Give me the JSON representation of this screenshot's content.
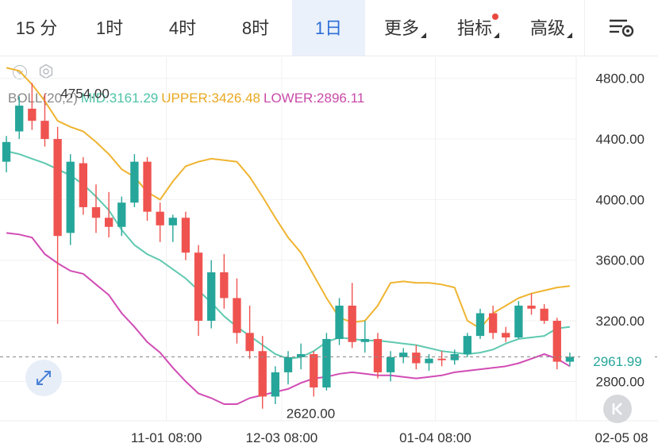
{
  "tabs": [
    {
      "label": "15 分",
      "active": false
    },
    {
      "label": "1时",
      "active": false
    },
    {
      "label": "4时",
      "active": false
    },
    {
      "label": "8时",
      "active": false
    },
    {
      "label": "1日",
      "active": true
    },
    {
      "label": "更多",
      "active": false,
      "dropdown": true
    },
    {
      "label": "指标",
      "active": false,
      "dropdown": true,
      "badge": true
    },
    {
      "label": "高级",
      "active": false,
      "dropdown": true
    }
  ],
  "toolbar_icons": [
    "collapse-icon",
    "settings-icon",
    "chart-settings-icon",
    "expand-icon",
    "scroll-to-latest-icon"
  ],
  "indicator": {
    "name": "BOLL(20,2)",
    "mid": "MID:3161.29",
    "upper": "UPPER:3426.48",
    "lower": "LOWER:2896.11"
  },
  "colors": {
    "up": "#26a69a",
    "down": "#ef5350",
    "mid": "#5fc9b0",
    "upper": "#efb431",
    "lower": "#d14cb4",
    "active_tab": "#2f6fd6",
    "badge": "#e8493e"
  },
  "price_labels": {
    "high": "4754.00",
    "low": "2620.00",
    "current": "2961.99"
  },
  "chart_data": {
    "type": "candlestick",
    "y_ticks": [
      "4800.00",
      "4400.00",
      "4000.00",
      "3600.00",
      "3200.00",
      "2800.00"
    ],
    "y_tick_values": [
      4800,
      4400,
      4000,
      3600,
      3200,
      2800
    ],
    "x_ticks": [
      "11-01 08:00",
      "12-03 08:00",
      "01-04 08:00",
      "02-05 08"
    ],
    "ylim": [
      2540,
      4940
    ],
    "current_price": 2961.99,
    "annotations": [
      {
        "label": "4754.00",
        "value": 4754
      },
      {
        "label": "2620.00",
        "value": 2620
      }
    ],
    "upper": [
      4870,
      4850,
      4760,
      4650,
      4520,
      4480,
      4450,
      4380,
      4300,
      4200,
      4150,
      4050,
      4000,
      4120,
      4220,
      4250,
      4270,
      4260,
      4250,
      4150,
      4020,
      3880,
      3750,
      3650,
      3500,
      3350,
      3220,
      3190,
      3200,
      3300,
      3450,
      3460,
      3450,
      3450,
      3440,
      3420,
      3200,
      3150,
      3250,
      3300,
      3350,
      3380,
      3400,
      3420,
      3430
    ],
    "mid": [
      4320,
      4300,
      4270,
      4240,
      4200,
      4160,
      4100,
      4020,
      3930,
      3800,
      3700,
      3640,
      3600,
      3540,
      3480,
      3400,
      3320,
      3230,
      3160,
      3100,
      3040,
      2980,
      2950,
      2960,
      3000,
      3060,
      3090,
      3080,
      3070,
      3070,
      3060,
      3050,
      3040,
      3020,
      3000,
      2990,
      2980,
      2990,
      3010,
      3050,
      3080,
      3090,
      3100,
      3150,
      3160
    ],
    "lower": [
      3780,
      3770,
      3750,
      3640,
      3580,
      3530,
      3510,
      3440,
      3370,
      3250,
      3160,
      3060,
      2990,
      2890,
      2800,
      2720,
      2690,
      2650,
      2650,
      2690,
      2710,
      2730,
      2750,
      2790,
      2820,
      2830,
      2850,
      2860,
      2850,
      2840,
      2840,
      2830,
      2820,
      2830,
      2840,
      2860,
      2870,
      2880,
      2890,
      2900,
      2920,
      2950,
      2980,
      2950,
      2900
    ],
    "candles": [
      {
        "o": 4250,
        "h": 4420,
        "l": 4180,
        "c": 4380
      },
      {
        "o": 4450,
        "h": 4680,
        "l": 4400,
        "c": 4620
      },
      {
        "o": 4600,
        "h": 4770,
        "l": 4460,
        "c": 4520
      },
      {
        "o": 4520,
        "h": 4700,
        "l": 4350,
        "c": 4400
      },
      {
        "o": 4400,
        "h": 4480,
        "l": 3180,
        "c": 3760
      },
      {
        "o": 3780,
        "h": 4300,
        "l": 3700,
        "c": 4250
      },
      {
        "o": 4240,
        "h": 4280,
        "l": 3900,
        "c": 3950
      },
      {
        "o": 3950,
        "h": 4100,
        "l": 3780,
        "c": 3880
      },
      {
        "o": 3880,
        "h": 4050,
        "l": 3750,
        "c": 3820
      },
      {
        "o": 3820,
        "h": 4020,
        "l": 3760,
        "c": 3980
      },
      {
        "o": 3980,
        "h": 4300,
        "l": 3950,
        "c": 4250
      },
      {
        "o": 4250,
        "h": 4280,
        "l": 3860,
        "c": 3920
      },
      {
        "o": 3920,
        "h": 3980,
        "l": 3720,
        "c": 3830
      },
      {
        "o": 3830,
        "h": 3900,
        "l": 3720,
        "c": 3880
      },
      {
        "o": 3880,
        "h": 3920,
        "l": 3600,
        "c": 3650
      },
      {
        "o": 3650,
        "h": 3700,
        "l": 3100,
        "c": 3200
      },
      {
        "o": 3200,
        "h": 3600,
        "l": 3150,
        "c": 3520
      },
      {
        "o": 3520,
        "h": 3640,
        "l": 3280,
        "c": 3350
      },
      {
        "o": 3350,
        "h": 3480,
        "l": 3050,
        "c": 3120
      },
      {
        "o": 3120,
        "h": 3300,
        "l": 2950,
        "c": 3000
      },
      {
        "o": 3000,
        "h": 3100,
        "l": 2620,
        "c": 2700
      },
      {
        "o": 2700,
        "h": 2900,
        "l": 2650,
        "c": 2860
      },
      {
        "o": 2860,
        "h": 3000,
        "l": 2780,
        "c": 2960
      },
      {
        "o": 2960,
        "h": 3050,
        "l": 2880,
        "c": 2980
      },
      {
        "o": 2980,
        "h": 3000,
        "l": 2700,
        "c": 2760
      },
      {
        "o": 2760,
        "h": 3120,
        "l": 2740,
        "c": 3080
      },
      {
        "o": 3080,
        "h": 3350,
        "l": 3040,
        "c": 3300
      },
      {
        "o": 3300,
        "h": 3450,
        "l": 3020,
        "c": 3060
      },
      {
        "o": 3060,
        "h": 3200,
        "l": 2990,
        "c": 3080
      },
      {
        "o": 3080,
        "h": 3120,
        "l": 2820,
        "c": 2860
      },
      {
        "o": 2860,
        "h": 3000,
        "l": 2800,
        "c": 2960
      },
      {
        "o": 2960,
        "h": 3020,
        "l": 2920,
        "c": 2990
      },
      {
        "o": 2990,
        "h": 3040,
        "l": 2880,
        "c": 2920
      },
      {
        "o": 2920,
        "h": 2980,
        "l": 2870,
        "c": 2950
      },
      {
        "o": 2950,
        "h": 3000,
        "l": 2900,
        "c": 2940
      },
      {
        "o": 2940,
        "h": 3010,
        "l": 2910,
        "c": 2980
      },
      {
        "o": 2980,
        "h": 3120,
        "l": 2960,
        "c": 3100
      },
      {
        "o": 3100,
        "h": 3280,
        "l": 3080,
        "c": 3250
      },
      {
        "o": 3250,
        "h": 3300,
        "l": 3080,
        "c": 3120
      },
      {
        "o": 3120,
        "h": 3160,
        "l": 3060,
        "c": 3090
      },
      {
        "o": 3090,
        "h": 3330,
        "l": 3080,
        "c": 3300
      },
      {
        "o": 3300,
        "h": 3380,
        "l": 3240,
        "c": 3280
      },
      {
        "o": 3280,
        "h": 3310,
        "l": 3180,
        "c": 3200
      },
      {
        "o": 3200,
        "h": 3220,
        "l": 2880,
        "c": 2930
      },
      {
        "o": 2930,
        "h": 2990,
        "l": 2900,
        "c": 2962
      }
    ]
  }
}
